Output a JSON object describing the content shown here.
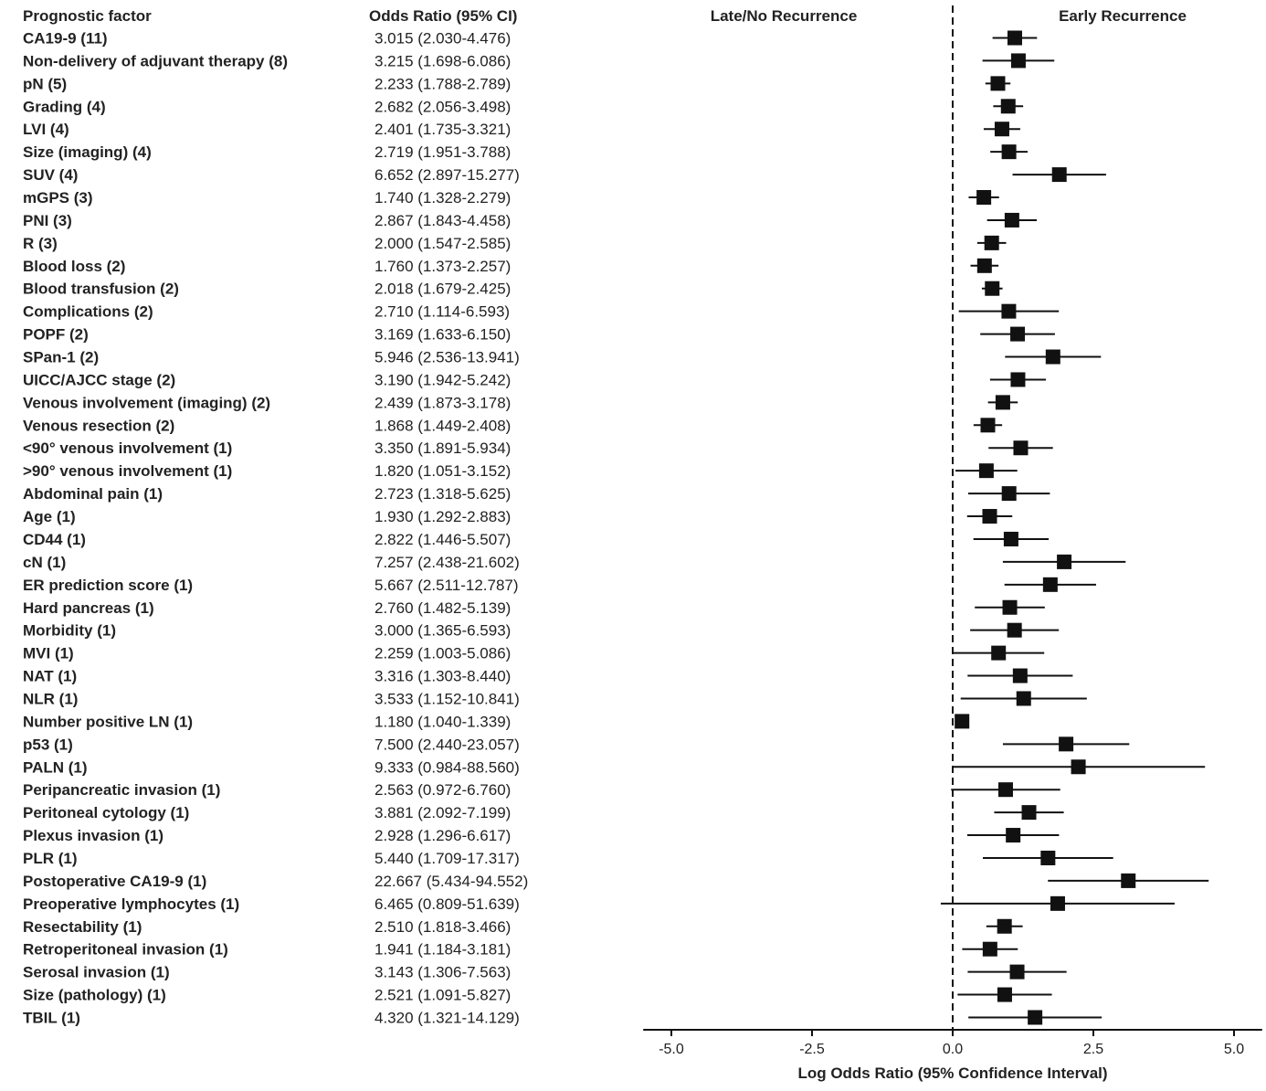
{
  "chart_data": {
    "type": "forest",
    "headers": {
      "factor": "Prognostic factor",
      "or": "Odds Ratio (95% CI)",
      "left": "Late/No Recurrence",
      "right": "Early Recurrence"
    },
    "xlabel": "Log Odds Ratio (95% Confidence Interval)",
    "xlim": [
      -5.5,
      5.5
    ],
    "xticks": [
      -5.0,
      -2.5,
      0.0,
      2.5,
      5.0
    ],
    "xtick_labels": [
      "-5.0",
      "-2.5",
      "0.0",
      "2.5",
      "5.0"
    ],
    "reference_line": 0,
    "rows": [
      {
        "factor": "CA19-9 (11)",
        "or_text": "3.015 (2.030-4.476)",
        "or": 3.015,
        "lo": 2.03,
        "hi": 4.476
      },
      {
        "factor": "Non-delivery of adjuvant therapy (8)",
        "or_text": "3.215 (1.698-6.086)",
        "or": 3.215,
        "lo": 1.698,
        "hi": 6.086
      },
      {
        "factor": "pN (5)",
        "or_text": "2.233 (1.788-2.789)",
        "or": 2.233,
        "lo": 1.788,
        "hi": 2.789
      },
      {
        "factor": "Grading (4)",
        "or_text": "2.682 (2.056-3.498)",
        "or": 2.682,
        "lo": 2.056,
        "hi": 3.498
      },
      {
        "factor": "LVI (4)",
        "or_text": "2.401 (1.735-3.321)",
        "or": 2.401,
        "lo": 1.735,
        "hi": 3.321
      },
      {
        "factor": "Size (imaging) (4)",
        "or_text": "2.719 (1.951-3.788)",
        "or": 2.719,
        "lo": 1.951,
        "hi": 3.788
      },
      {
        "factor": "SUV (4)",
        "or_text": "6.652 (2.897-15.277)",
        "or": 6.652,
        "lo": 2.897,
        "hi": 15.277
      },
      {
        "factor": "mGPS (3)",
        "or_text": "1.740 (1.328-2.279)",
        "or": 1.74,
        "lo": 1.328,
        "hi": 2.279
      },
      {
        "factor": "PNI (3)",
        "or_text": "2.867 (1.843-4.458)",
        "or": 2.867,
        "lo": 1.843,
        "hi": 4.458
      },
      {
        "factor": "R (3)",
        "or_text": "2.000 (1.547-2.585)",
        "or": 2.0,
        "lo": 1.547,
        "hi": 2.585
      },
      {
        "factor": "Blood loss (2)",
        "or_text": "1.760 (1.373-2.257)",
        "or": 1.76,
        "lo": 1.373,
        "hi": 2.257
      },
      {
        "factor": "Blood transfusion (2)",
        "or_text": "2.018 (1.679-2.425)",
        "or": 2.018,
        "lo": 1.679,
        "hi": 2.425
      },
      {
        "factor": "Complications (2)",
        "or_text": "2.710 (1.114-6.593)",
        "or": 2.71,
        "lo": 1.114,
        "hi": 6.593
      },
      {
        "factor": "POPF (2)",
        "or_text": "3.169 (1.633-6.150)",
        "or": 3.169,
        "lo": 1.633,
        "hi": 6.15
      },
      {
        "factor": "SPan-1 (2)",
        "or_text": "5.946 (2.536-13.941)",
        "or": 5.946,
        "lo": 2.536,
        "hi": 13.941
      },
      {
        "factor": "UICC/AJCC stage (2)",
        "or_text": "3.190 (1.942-5.242)",
        "or": 3.19,
        "lo": 1.942,
        "hi": 5.242
      },
      {
        "factor": "Venous involvement (imaging) (2)",
        "or_text": "2.439 (1.873-3.178)",
        "or": 2.439,
        "lo": 1.873,
        "hi": 3.178
      },
      {
        "factor": "Venous resection (2)",
        "or_text": "1.868 (1.449-2.408)",
        "or": 1.868,
        "lo": 1.449,
        "hi": 2.408
      },
      {
        "factor": "<90° venous involvement (1)",
        "or_text": "3.350 (1.891-5.934)",
        "or": 3.35,
        "lo": 1.891,
        "hi": 5.934
      },
      {
        "factor": ">90° venous involvement (1)",
        "or_text": "1.820 (1.051-3.152)",
        "or": 1.82,
        "lo": 1.051,
        "hi": 3.152
      },
      {
        "factor": "Abdominal pain (1)",
        "or_text": "2.723 (1.318-5.625)",
        "or": 2.723,
        "lo": 1.318,
        "hi": 5.625
      },
      {
        "factor": "Age (1)",
        "or_text": "1.930 (1.292-2.883)",
        "or": 1.93,
        "lo": 1.292,
        "hi": 2.883
      },
      {
        "factor": "CD44 (1)",
        "or_text": "2.822 (1.446-5.507)",
        "or": 2.822,
        "lo": 1.446,
        "hi": 5.507
      },
      {
        "factor": "cN (1)",
        "or_text": "7.257 (2.438-21.602)",
        "or": 7.257,
        "lo": 2.438,
        "hi": 21.602
      },
      {
        "factor": "ER prediction score (1)",
        "or_text": "5.667 (2.511-12.787)",
        "or": 5.667,
        "lo": 2.511,
        "hi": 12.787
      },
      {
        "factor": "Hard pancreas (1)",
        "or_text": "2.760 (1.482-5.139)",
        "or": 2.76,
        "lo": 1.482,
        "hi": 5.139
      },
      {
        "factor": "Morbidity (1)",
        "or_text": "3.000 (1.365-6.593)",
        "or": 3.0,
        "lo": 1.365,
        "hi": 6.593
      },
      {
        "factor": "MVI (1)",
        "or_text": "2.259 (1.003-5.086)",
        "or": 2.259,
        "lo": 1.003,
        "hi": 5.086
      },
      {
        "factor": "NAT (1)",
        "or_text": "3.316 (1.303-8.440)",
        "or": 3.316,
        "lo": 1.303,
        "hi": 8.44
      },
      {
        "factor": "NLR (1)",
        "or_text": "3.533 (1.152-10.841)",
        "or": 3.533,
        "lo": 1.152,
        "hi": 10.841
      },
      {
        "factor": "Number positive LN (1)",
        "or_text": "1.180 (1.040-1.339)",
        "or": 1.18,
        "lo": 1.04,
        "hi": 1.339
      },
      {
        "factor": "p53 (1)",
        "or_text": "7.500 (2.440-23.057)",
        "or": 7.5,
        "lo": 2.44,
        "hi": 23.057
      },
      {
        "factor": "PALN (1)",
        "or_text": "9.333 (0.984-88.560)",
        "or": 9.333,
        "lo": 0.984,
        "hi": 88.56
      },
      {
        "factor": "Peripancreatic invasion (1)",
        "or_text": "2.563 (0.972-6.760)",
        "or": 2.563,
        "lo": 0.972,
        "hi": 6.76
      },
      {
        "factor": "Peritoneal cytology (1)",
        "or_text": "3.881 (2.092-7.199)",
        "or": 3.881,
        "lo": 2.092,
        "hi": 7.199
      },
      {
        "factor": "Plexus invasion (1)",
        "or_text": "2.928 (1.296-6.617)",
        "or": 2.928,
        "lo": 1.296,
        "hi": 6.617
      },
      {
        "factor": "PLR (1)",
        "or_text": "5.440 (1.709-17.317)",
        "or": 5.44,
        "lo": 1.709,
        "hi": 17.317
      },
      {
        "factor": "Postoperative CA19-9 (1)",
        "or_text": "22.667 (5.434-94.552)",
        "or": 22.667,
        "lo": 5.434,
        "hi": 94.552
      },
      {
        "factor": "Preoperative lymphocytes (1)",
        "or_text": "6.465 (0.809-51.639)",
        "or": 6.465,
        "lo": 0.809,
        "hi": 51.639
      },
      {
        "factor": "Resectability (1)",
        "or_text": "2.510 (1.818-3.466)",
        "or": 2.51,
        "lo": 1.818,
        "hi": 3.466
      },
      {
        "factor": "Retroperitoneal invasion (1)",
        "or_text": "1.941 (1.184-3.181)",
        "or": 1.941,
        "lo": 1.184,
        "hi": 3.181
      },
      {
        "factor": "Serosal invasion (1)",
        "or_text": "3.143 (1.306-7.563)",
        "or": 3.143,
        "lo": 1.306,
        "hi": 7.563
      },
      {
        "factor": "Size (pathology) (1)",
        "or_text": "2.521 (1.091-5.827)",
        "or": 2.521,
        "lo": 1.091,
        "hi": 5.827
      },
      {
        "factor": "TBIL (1)",
        "or_text": "4.320 (1.321-14.129)",
        "or": 4.32,
        "lo": 1.321,
        "hi": 14.129
      }
    ]
  }
}
